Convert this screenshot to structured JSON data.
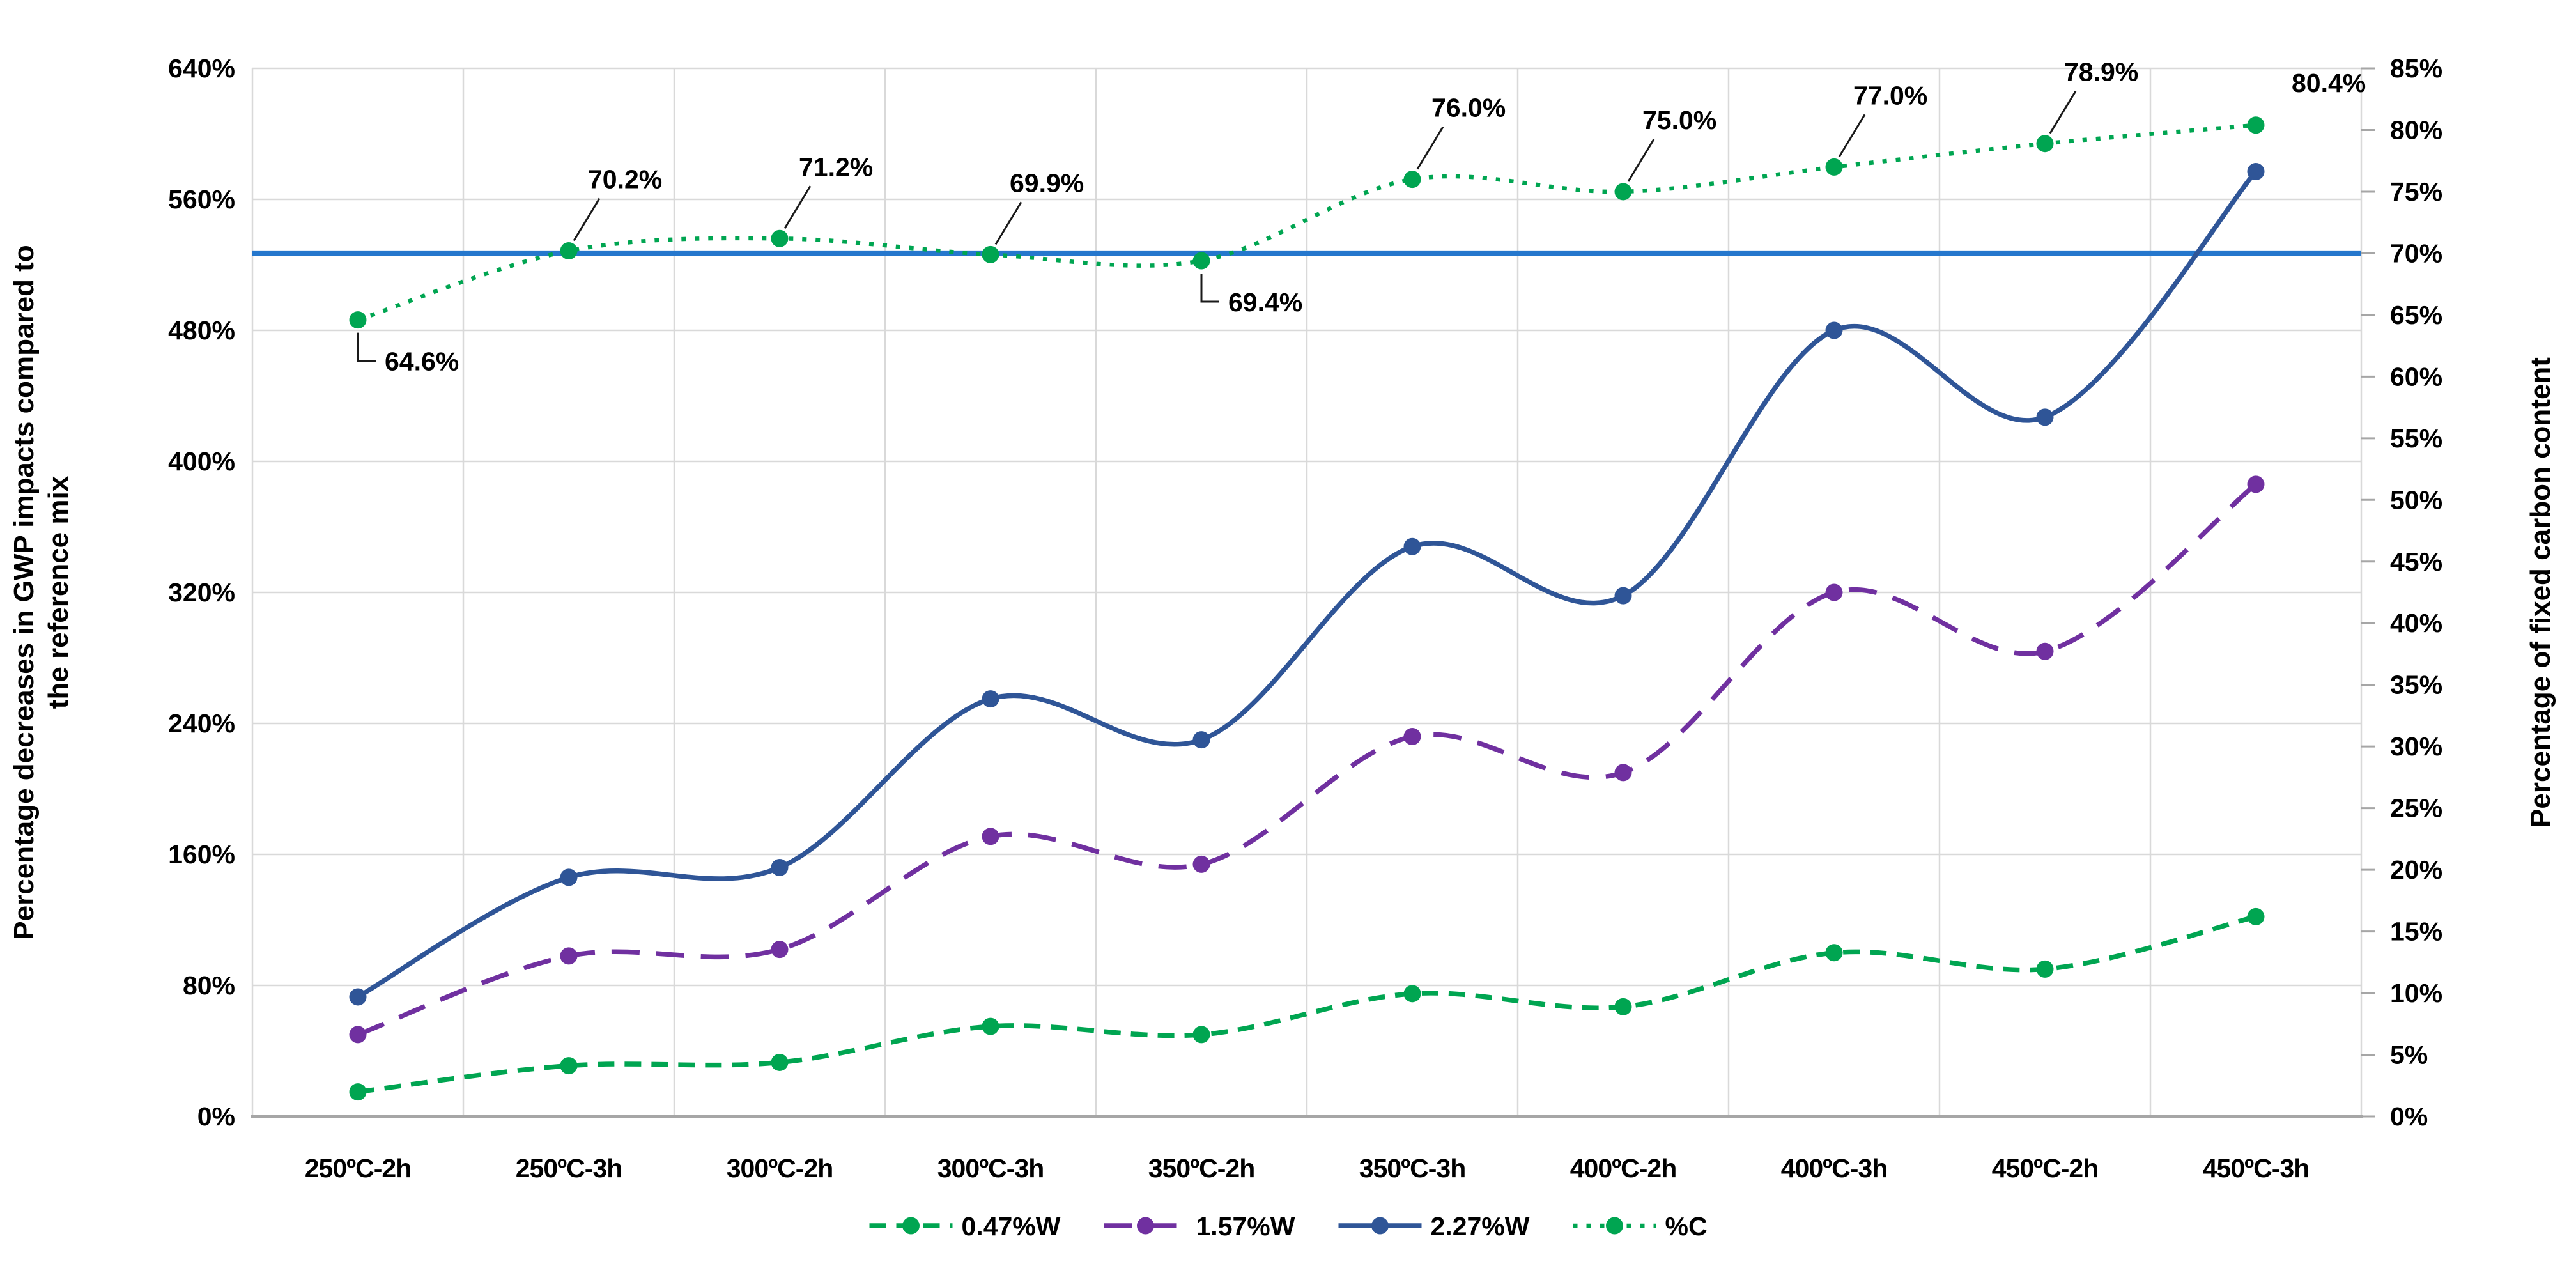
{
  "chart_data": {
    "type": "line",
    "title": "",
    "categories": [
      "250ºC-2h",
      "250ºC-3h",
      "300ºC-2h",
      "300ºC-3h",
      "350ºC-2h",
      "350ºC-3h",
      "400ºC-2h",
      "400ºC-3h",
      "450ºC-2h",
      "450ºC-3h"
    ],
    "series": [
      {
        "name": "0.47%W",
        "axis": "left",
        "values": [
          15,
          31,
          33,
          55,
          50,
          75,
          67,
          100,
          90,
          122
        ],
        "color": "#00A551",
        "line_style": "dashed",
        "marker": "circle"
      },
      {
        "name": "1.57%W",
        "axis": "left",
        "values": [
          50,
          98,
          102,
          171,
          154,
          232,
          210,
          320,
          284,
          386
        ],
        "color": "#7030A0",
        "line_style": "long-dash",
        "marker": "circle"
      },
      {
        "name": "2.27%W",
        "axis": "left",
        "values": [
          73,
          146,
          152,
          255,
          230,
          348,
          318,
          480,
          427,
          577
        ],
        "color": "#2F5597",
        "line_style": "solid",
        "marker": "circle"
      },
      {
        "name": "%C",
        "axis": "right",
        "values": [
          64.6,
          70.2,
          71.2,
          69.9,
          69.4,
          76.0,
          75.0,
          77.0,
          78.9,
          80.4
        ],
        "color": "#00A551",
        "line_style": "dotted",
        "marker": "circle",
        "data_labels": [
          "64.6%",
          "70.2%",
          "71.2%",
          "69.9%",
          "69.4%",
          "76.0%",
          "75.0%",
          "77.0%",
          "78.9%",
          "80.4%"
        ],
        "label_placements": [
          "below-elbow",
          "above",
          "above",
          "above",
          "below-elbow",
          "above",
          "above",
          "above",
          "above",
          "right"
        ]
      }
    ],
    "reference_line": {
      "axis": "right",
      "value": 70,
      "color": "#2577CD"
    },
    "left_axis": {
      "title": "Percentage decreases in GWP impacts compared to the reference mix",
      "title_lines": [
        "Percentage decreases in GWP impacts compared to",
        "the reference mix"
      ],
      "min": 0,
      "max": 640,
      "step": 80,
      "tick_labels": [
        "0%",
        "80%",
        "160%",
        "240%",
        "320%",
        "400%",
        "480%",
        "560%",
        "640%"
      ]
    },
    "right_axis": {
      "title": "Percentage of fixed carbon content",
      "min": 0,
      "max": 85,
      "step": 5,
      "tick_labels": [
        "0%",
        "5%",
        "10%",
        "15%",
        "20%",
        "25%",
        "30%",
        "35%",
        "40%",
        "45%",
        "50%",
        "55%",
        "60%",
        "65%",
        "70%",
        "75%",
        "80%",
        "85%"
      ]
    },
    "legend": {
      "position": "bottom",
      "items": [
        {
          "label": "0.47%W",
          "color": "#00A551",
          "line_style": "dashed"
        },
        {
          "label": "1.57%W",
          "color": "#7030A0",
          "line_style": "long-dash"
        },
        {
          "label": "2.27%W",
          "color": "#2F5597",
          "line_style": "solid"
        },
        {
          "label": "%C",
          "color": "#00A551",
          "line_style": "dotted"
        }
      ]
    },
    "grid": true,
    "colors": {
      "gridline": "#D9D9D9",
      "axis_line": "#A6A6A6",
      "leader_line": "#1a1a1a",
      "text": "#000000",
      "background": "#ffffff"
    }
  }
}
